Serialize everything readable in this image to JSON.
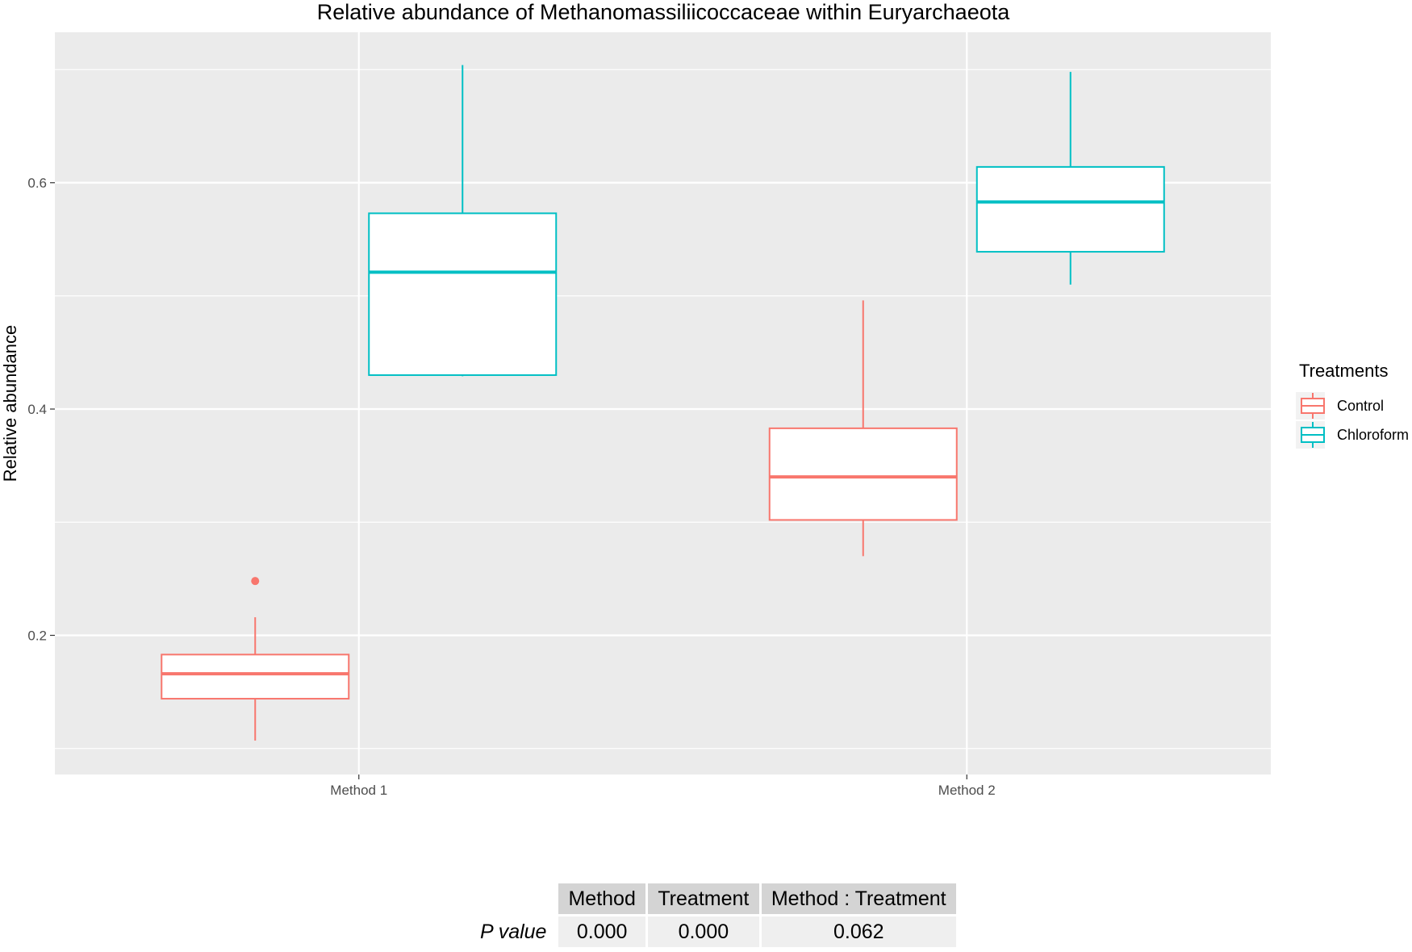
{
  "chart_data": {
    "type": "box",
    "title": "Relative abundance of Methanomassiliicoccaceae within Euryarchaeota",
    "xlabel": "",
    "ylabel": "Relative abundance",
    "categories": [
      "Method 1",
      "Method 2"
    ],
    "ylim": [
      0.077,
      0.733
    ],
    "yticks": [
      0.2,
      0.4,
      0.6
    ],
    "ytick_labels": [
      "0.2",
      "0.4",
      "0.6"
    ],
    "grid": true,
    "legend": {
      "title": "Treatments",
      "position": "right"
    },
    "series": [
      {
        "name": "Control",
        "color": "#F8766D",
        "boxes": [
          {
            "category": "Method 1",
            "whisker_low": 0.107,
            "q1": 0.144,
            "median": 0.166,
            "q3": 0.183,
            "whisker_high": 0.216,
            "outliers": [
              0.248
            ]
          },
          {
            "category": "Method 2",
            "whisker_low": 0.27,
            "q1": 0.302,
            "median": 0.34,
            "q3": 0.383,
            "whisker_high": 0.496,
            "outliers": []
          }
        ]
      },
      {
        "name": "Chloroform",
        "color": "#00BFC4",
        "boxes": [
          {
            "category": "Method 1",
            "whisker_low": 0.429,
            "q1": 0.43,
            "median": 0.521,
            "q3": 0.573,
            "whisker_high": 0.704,
            "outliers": []
          },
          {
            "category": "Method 2",
            "whisker_low": 0.51,
            "q1": 0.539,
            "median": 0.583,
            "q3": 0.614,
            "whisker_high": 0.698,
            "outliers": []
          }
        ]
      }
    ]
  },
  "pvalue_table": {
    "row_label": "P value",
    "headers": [
      "Method",
      "Treatment",
      "Method : Treatment"
    ],
    "values": [
      "0.000",
      "0.000",
      "0.062"
    ]
  }
}
